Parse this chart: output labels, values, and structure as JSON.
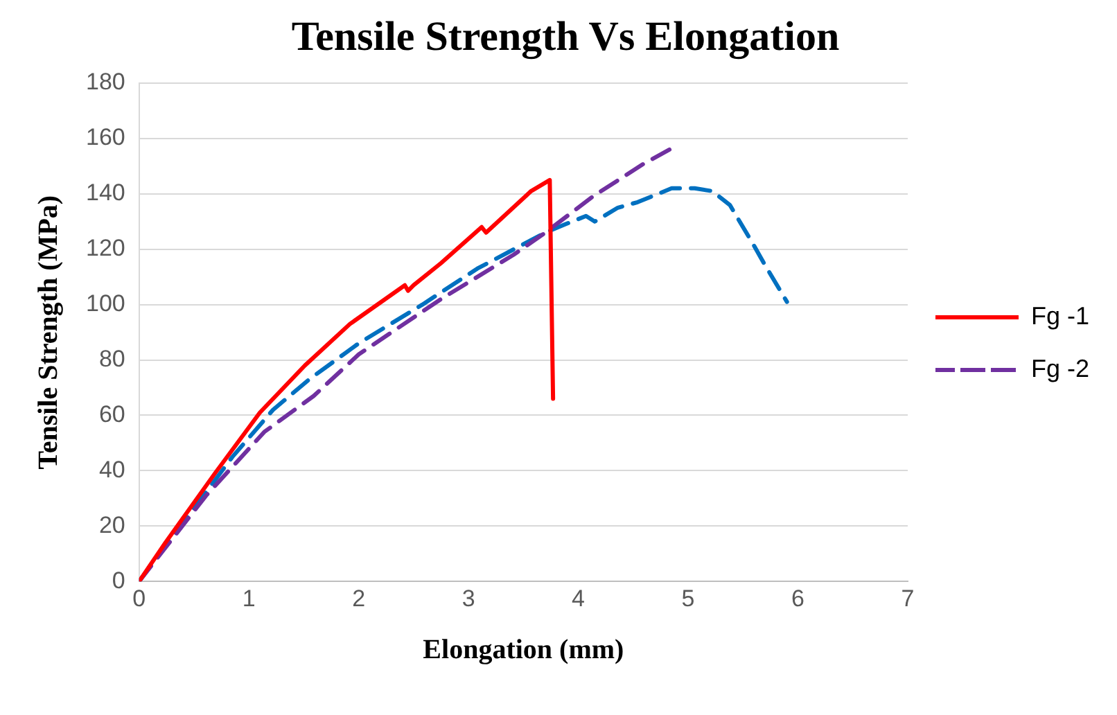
{
  "chart_data": {
    "type": "line",
    "title": "Tensile Strength Vs Elongation",
    "xlabel": "Elongation (mm)",
    "ylabel": "Tensile Strength (MPa)",
    "xlim": [
      0,
      7
    ],
    "xticks": [
      0,
      1,
      2,
      3,
      4,
      5,
      6,
      7
    ],
    "ylim": [
      0,
      180
    ],
    "yticks": [
      0,
      20,
      40,
      60,
      80,
      100,
      120,
      140,
      160,
      180
    ],
    "grid": "y",
    "legend": "right",
    "marker": "none",
    "series": [
      {
        "name": "Fg -1",
        "color": "#ff0000",
        "line_style": "solid",
        "x": [
          0,
          0.24,
          0.69,
          1.1,
          1.51,
          1.92,
          2.42,
          2.45,
          2.5,
          2.75,
          3.12,
          3.16,
          3.57,
          3.74,
          3.77
        ],
        "values": [
          0,
          14,
          39,
          61,
          78,
          93,
          107,
          105,
          107,
          115,
          128,
          126,
          141,
          145,
          66
        ]
      },
      {
        "name": "Fg -2",
        "color": "#7030a0",
        "line_style": "dashed",
        "x": [
          0,
          0.61,
          1.14,
          1.59,
          2.0,
          2.75,
          3.41,
          3.7,
          4.13,
          4.6,
          4.83
        ],
        "values": [
          0,
          31,
          54,
          67,
          82,
          102,
          118,
          126,
          139,
          151,
          156
        ]
      },
      {
        "color": "#0070c0",
        "line_style": "dashed",
        "x": [
          0,
          0.85,
          1.22,
          1.55,
          2.0,
          2.58,
          3.08,
          3.7,
          3.88,
          4.07,
          4.15,
          4.36,
          4.54,
          4.85,
          5.06,
          5.22,
          5.38,
          5.59,
          5.69,
          5.9
        ],
        "values": [
          0,
          45,
          62,
          73,
          86,
          100,
          113,
          126,
          129,
          132,
          130,
          135,
          137,
          142,
          142,
          141,
          136,
          122,
          115,
          101
        ]
      }
    ]
  }
}
